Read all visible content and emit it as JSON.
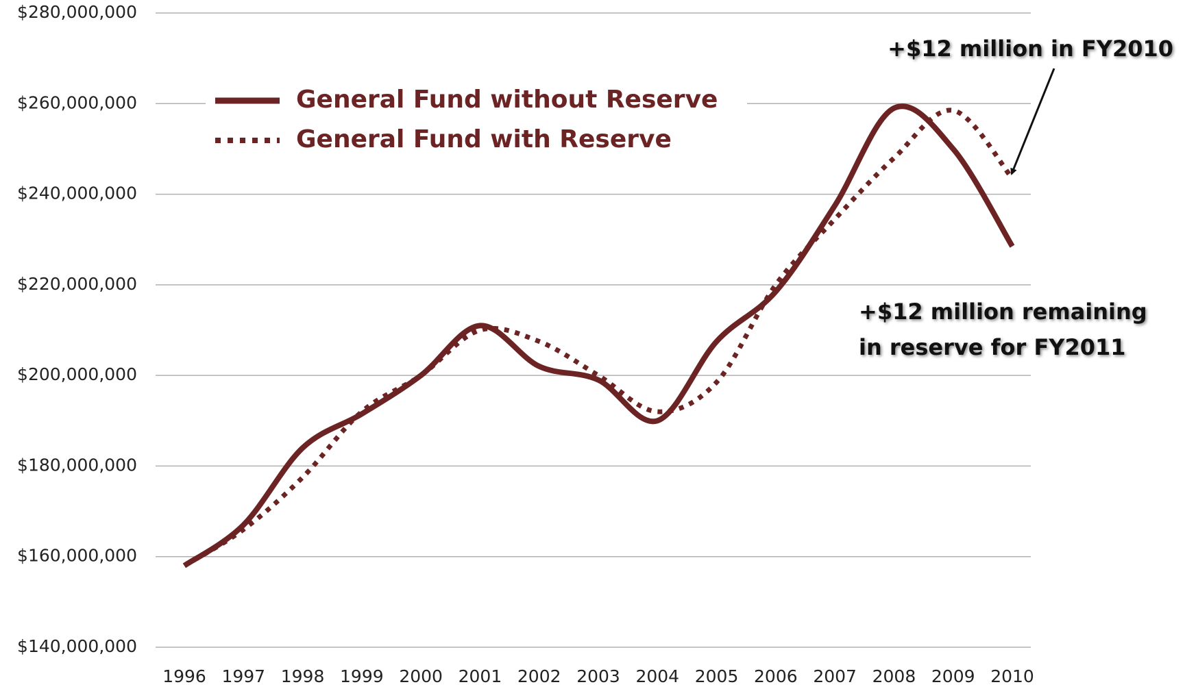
{
  "chart_data": {
    "type": "line",
    "categories": [
      "1996",
      "1997",
      "1998",
      "1999",
      "2000",
      "2001",
      "2002",
      "2003",
      "2004",
      "2005",
      "2006",
      "2007",
      "2008",
      "2009",
      "2010"
    ],
    "series": [
      {
        "name": "General Fund without Reserve",
        "color": "#6b2323",
        "style": "solid",
        "values": [
          158000000,
          167000000,
          184000000,
          191500000,
          200000000,
          211000000,
          202000000,
          199000000,
          190000000,
          207500000,
          218500000,
          237500000,
          259000000,
          250000000,
          228500000
        ]
      },
      {
        "name": "General Fund with Reserve",
        "color": "#6b2323",
        "style": "dotted",
        "values": [
          158000000,
          166000000,
          177500000,
          192000000,
          200000000,
          210000000,
          207500000,
          200000000,
          192000000,
          198500000,
          220000000,
          234500000,
          248000000,
          258500000,
          243500000
        ]
      }
    ],
    "ylim": [
      140000000,
      280000000
    ],
    "yticks": [
      {
        "value": 140000000,
        "label": "$140,000,000"
      },
      {
        "value": 160000000,
        "label": "$160,000,000"
      },
      {
        "value": 180000000,
        "label": "$180,000,000"
      },
      {
        "value": 200000000,
        "label": "$200,000,000"
      },
      {
        "value": 220000000,
        "label": "$220,000,000"
      },
      {
        "value": 240000000,
        "label": "$240,000,000"
      },
      {
        "value": 260000000,
        "label": "$260,000,000"
      },
      {
        "value": 280000000,
        "label": "$280,000,000"
      }
    ],
    "grid": true,
    "annotations": [
      {
        "lines": [
          "+$12 million in FY2010"
        ]
      },
      {
        "lines": [
          "+$12 million remaining",
          "in reserve for FY2011"
        ]
      }
    ]
  }
}
